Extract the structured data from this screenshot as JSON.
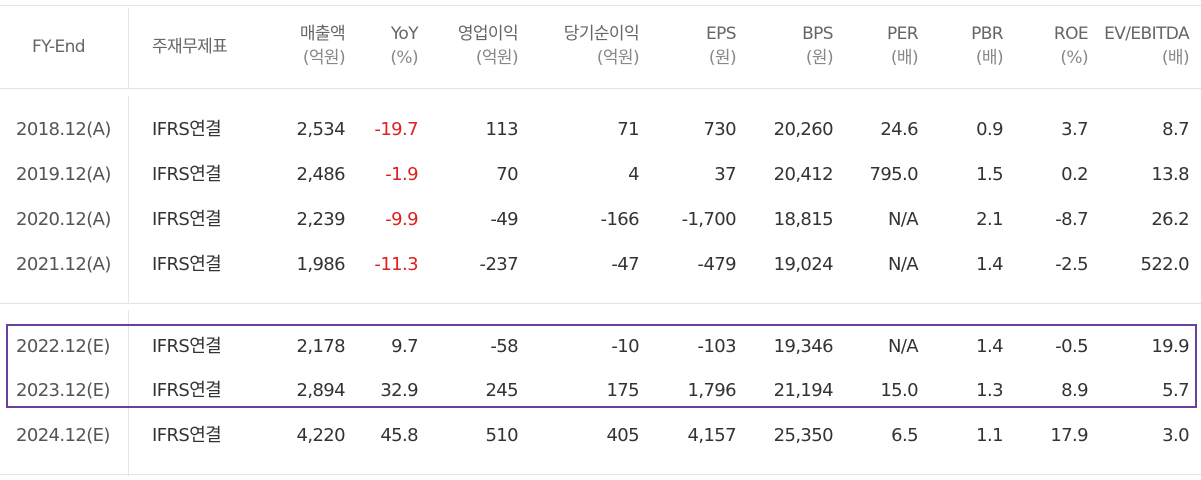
{
  "table": {
    "headers": [
      {
        "label": "FY-End",
        "unit": ""
      },
      {
        "label": "주재무제표",
        "unit": ""
      },
      {
        "label": "매출액",
        "unit": "(억원)"
      },
      {
        "label": "YoY",
        "unit": "(%)"
      },
      {
        "label": "영업이익",
        "unit": "(억원)"
      },
      {
        "label": "당기순이익",
        "unit": "(억원)"
      },
      {
        "label": "EPS",
        "unit": "(원)"
      },
      {
        "label": "BPS",
        "unit": "(원)"
      },
      {
        "label": "PER",
        "unit": "(배)"
      },
      {
        "label": "PBR",
        "unit": "(배)"
      },
      {
        "label": "ROE",
        "unit": "(%)"
      },
      {
        "label": "EV/EBITDA",
        "unit": "(배)"
      }
    ],
    "rows": [
      [
        "2018.12(A)",
        "IFRS연결",
        "2,534",
        "-19.7",
        "113",
        "71",
        "730",
        "20,260",
        "24.6",
        "0.9",
        "3.7",
        "8.7"
      ],
      [
        "2019.12(A)",
        "IFRS연결",
        "2,486",
        "-1.9",
        "70",
        "4",
        "37",
        "20,412",
        "795.0",
        "1.5",
        "0.2",
        "13.8"
      ],
      [
        "2020.12(A)",
        "IFRS연결",
        "2,239",
        "-9.9",
        "-49",
        "-166",
        "-1,700",
        "18,815",
        "N/A",
        "2.1",
        "-8.7",
        "26.2"
      ],
      [
        "2021.12(A)",
        "IFRS연결",
        "1,986",
        "-11.3",
        "-237",
        "-47",
        "-479",
        "19,024",
        "N/A",
        "1.4",
        "-2.5",
        "522.0"
      ],
      [
        "2022.12(E)",
        "IFRS연결",
        "2,178",
        "9.7",
        "-58",
        "-10",
        "-103",
        "19,346",
        "N/A",
        "1.4",
        "-0.5",
        "19.9"
      ],
      [
        "2023.12(E)",
        "IFRS연결",
        "2,894",
        "32.9",
        "245",
        "175",
        "1,796",
        "21,194",
        "15.0",
        "1.3",
        "8.9",
        "5.7"
      ],
      [
        "2024.12(E)",
        "IFRS연결",
        "4,220",
        "45.8",
        "510",
        "405",
        "4,157",
        "25,350",
        "6.5",
        "1.1",
        "17.9",
        "3.0"
      ]
    ]
  },
  "colors": {
    "negative_yoy": "#e02020",
    "highlight_border": "#6a3fa0",
    "text": "#333333",
    "header_text": "#666666",
    "divider": "#e2e2e2"
  }
}
